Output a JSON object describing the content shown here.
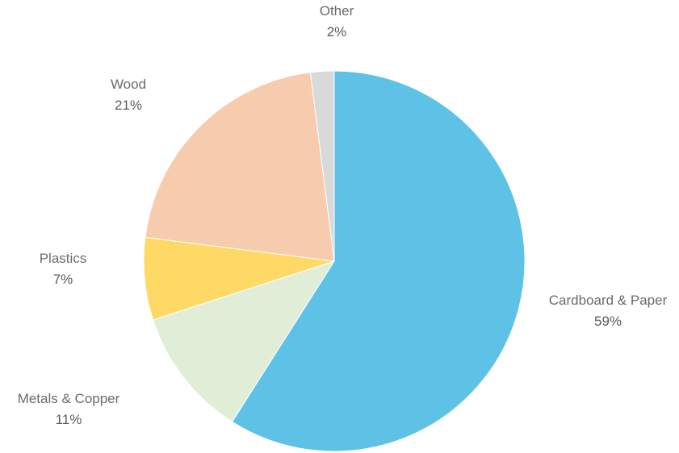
{
  "chart_data": {
    "type": "pie",
    "title": "",
    "slices": [
      {
        "label": "Cardboard & Paper",
        "percent_label": "59%",
        "value": 59,
        "color": "#5ec2e6"
      },
      {
        "label": "Metals & Copper",
        "percent_label": "11%",
        "value": 11,
        "color": "#e0eed8"
      },
      {
        "label": "Plastics",
        "percent_label": "7%",
        "value": 7,
        "color": "#ffd966"
      },
      {
        "label": "Wood",
        "percent_label": "21%",
        "value": 21,
        "color": "#f7cbae"
      },
      {
        "label": "Other",
        "percent_label": "2%",
        "value": 2,
        "color": "#d9d9d9"
      }
    ],
    "start": "12 o'clock",
    "direction": "clockwise",
    "legend": "none"
  }
}
